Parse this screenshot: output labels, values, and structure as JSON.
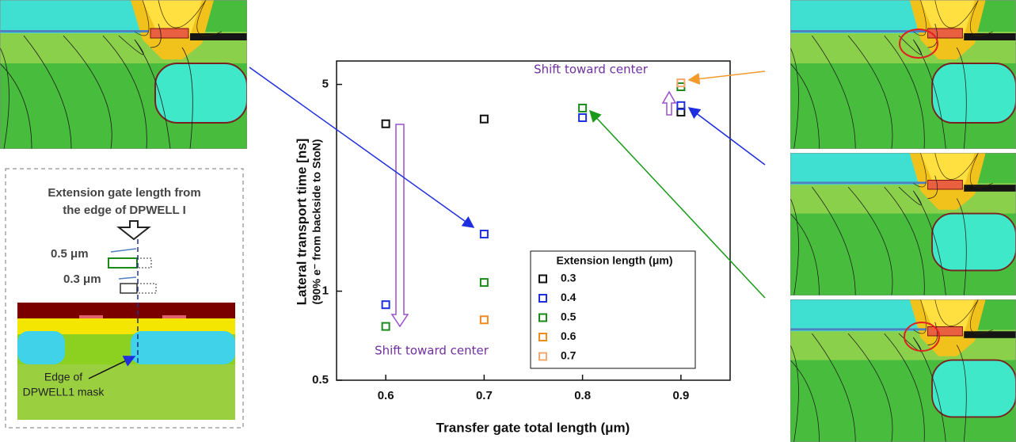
{
  "chart_data": {
    "type": "scatter",
    "x": [
      0.6,
      0.7,
      0.8,
      0.9
    ],
    "xlabel": "Transfer gate total length (μm)",
    "ylabel_lines": [
      "Lateral transport time [ns]",
      "(90% e⁻ from backside to StoN)"
    ],
    "xlim": [
      0.55,
      0.95
    ],
    "xticks": [
      0.6,
      0.7,
      0.8,
      0.9
    ],
    "ylim": [
      0.5,
      6
    ],
    "yticks": [
      0.5,
      1,
      5
    ],
    "ylog": true,
    "legend_title": "Extension length (μm)",
    "legend": "lower right",
    "series": [
      {
        "name": "0.3",
        "color": "#111111",
        "values": [
          3.68,
          3.82,
          null,
          4.03
        ]
      },
      {
        "name": "0.4",
        "color": "#1f2fe0",
        "values": [
          0.9,
          1.56,
          3.86,
          4.24
        ]
      },
      {
        "name": "0.5",
        "color": "#1a8a1a",
        "values": [
          0.76,
          1.07,
          4.16,
          4.91
        ]
      },
      {
        "name": "0.6",
        "color": "#f08a1a",
        "values": [
          null,
          0.8,
          null,
          null
        ]
      },
      {
        "name": "0.7",
        "color": "#f4a870",
        "values": [
          null,
          null,
          null,
          5.06
        ]
      }
    ],
    "annotations": [
      "Shift toward center",
      "Shift toward center"
    ]
  },
  "diagram": {
    "title_lines": [
      "Extension gate length from",
      "the edge of DPWELL I"
    ],
    "dims": [
      {
        "label": "0.5 μm",
        "color": "#1a8a1a"
      },
      {
        "label": "0.3 μm",
        "color": "#444444"
      }
    ],
    "note_lines": [
      "Edge of",
      "DPWELL1 mask"
    ]
  }
}
